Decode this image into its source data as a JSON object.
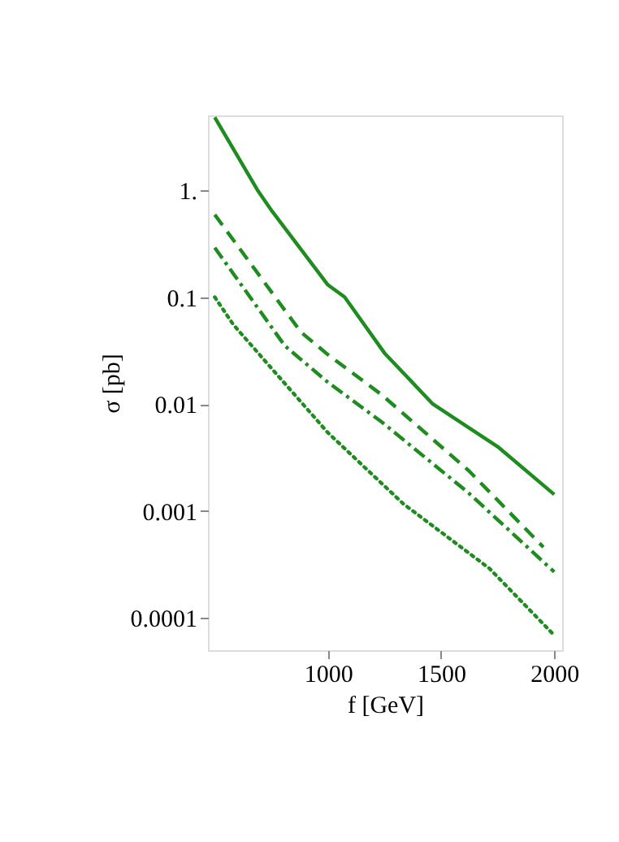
{
  "chart_data": {
    "type": "line",
    "xlabel": "f [GeV]",
    "ylabel": "σ [pb]",
    "log": "y",
    "grid": false,
    "marker": "none",
    "xlim": [
      470,
      2035
    ],
    "xticks": [
      1000,
      1500,
      2000
    ],
    "ylim": [
      5e-05,
      5
    ],
    "yticks": [
      {
        "value": 1,
        "label": "1."
      },
      0.1,
      0.01,
      0.001,
      0.0001
    ],
    "series": [
      {
        "color": "#1e8c1e",
        "line_style": "solid",
        "x": [
          500,
          689,
          750,
          1000,
          1074,
          1250,
          1464,
          1750,
          2000
        ],
        "values": [
          4.8,
          1.0,
          0.65,
          0.13,
          0.1,
          0.03,
          0.01,
          0.004,
          0.00143
        ]
      },
      {
        "color": "#1e8c1e",
        "line_style": "dashed",
        "x": [
          500,
          881,
          1000,
          1238,
          1621,
          1952
        ],
        "values": [
          0.59,
          0.047,
          0.029,
          0.0122,
          0.0024,
          0.00046
        ]
      },
      {
        "color": "#1e8c1e",
        "line_style": "dashdot",
        "x": [
          500,
          810,
          1000,
          1238,
          1621,
          2000
        ],
        "values": [
          0.29,
          0.035,
          0.016,
          0.0068,
          0.00148,
          0.00027
        ]
      },
      {
        "color": "#1e8c1e",
        "line_style": "dotted",
        "x": [
          500,
          583,
          1000,
          1333,
          1714,
          2000
        ],
        "values": [
          0.1,
          0.055,
          0.0054,
          0.00117,
          0.00029,
          6.9e-05
        ]
      }
    ]
  }
}
